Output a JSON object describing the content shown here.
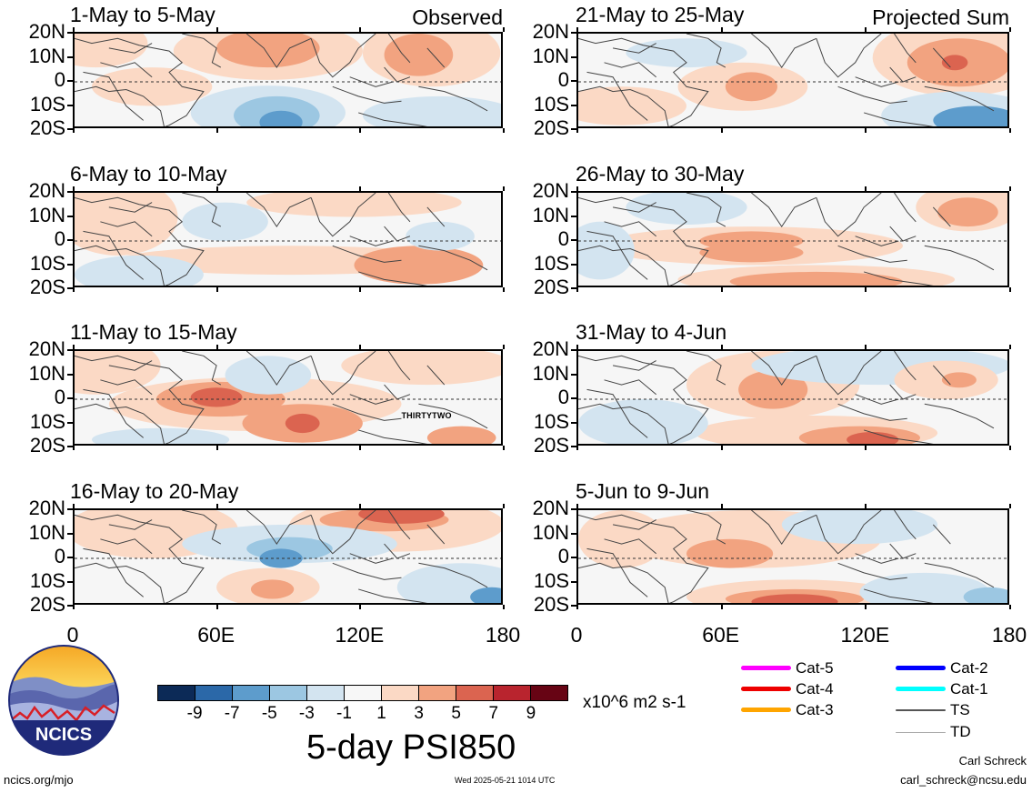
{
  "panels": [
    {
      "title": "1-May to 5-May",
      "tag": "Observed"
    },
    {
      "title": "6-May to 10-May",
      "tag": ""
    },
    {
      "title": "11-May to 15-May",
      "tag": ""
    },
    {
      "title": "16-May to 20-May",
      "tag": ""
    },
    {
      "title": "21-May to 25-May",
      "tag": "Projected Sum"
    },
    {
      "title": "26-May to 30-May",
      "tag": ""
    },
    {
      "title": "31-May to 4-Jun",
      "tag": ""
    },
    {
      "title": "5-Jun to 9-Jun",
      "tag": ""
    }
  ],
  "lat_labels": [
    "20N",
    "10N",
    "0",
    "10S",
    "20S"
  ],
  "lon_labels": [
    "0",
    "60E",
    "120E",
    "180"
  ],
  "storm_label": "THIRTYTWO",
  "colorbar": {
    "colors": [
      "#0c2a57",
      "#2b68a8",
      "#5d9ccc",
      "#9cc7e2",
      "#d3e4f0",
      "#f7f7f7",
      "#fbd9c5",
      "#f2a380",
      "#db6450",
      "#b9242e",
      "#670414"
    ],
    "labels": [
      "-9",
      "-7",
      "-5",
      "-3",
      "-1",
      "1",
      "3",
      "5",
      "7",
      "9"
    ],
    "units": "x10^6 m2 s-1"
  },
  "main_title": "5-day PSI850",
  "legend": [
    {
      "label": "Cat-5",
      "color": "#ff00ff"
    },
    {
      "label": "Cat-4",
      "color": "#ee0000"
    },
    {
      "label": "Cat-3",
      "color": "#ffa500"
    },
    {
      "label": "Cat-2",
      "color": "#0000ff"
    },
    {
      "label": "Cat-1",
      "color": "#00ffff"
    },
    {
      "label": "TS",
      "color": "#555555"
    },
    {
      "label": "TD",
      "color": "#aaaaaa"
    }
  ],
  "logo_text": "NCICS",
  "footer": {
    "url": "ncics.org/mjo",
    "timestamp": "Wed 2025-05-21 1014 UTC",
    "author": "Carl Schreck",
    "email": "carl_schreck@ncsu.edu"
  }
}
